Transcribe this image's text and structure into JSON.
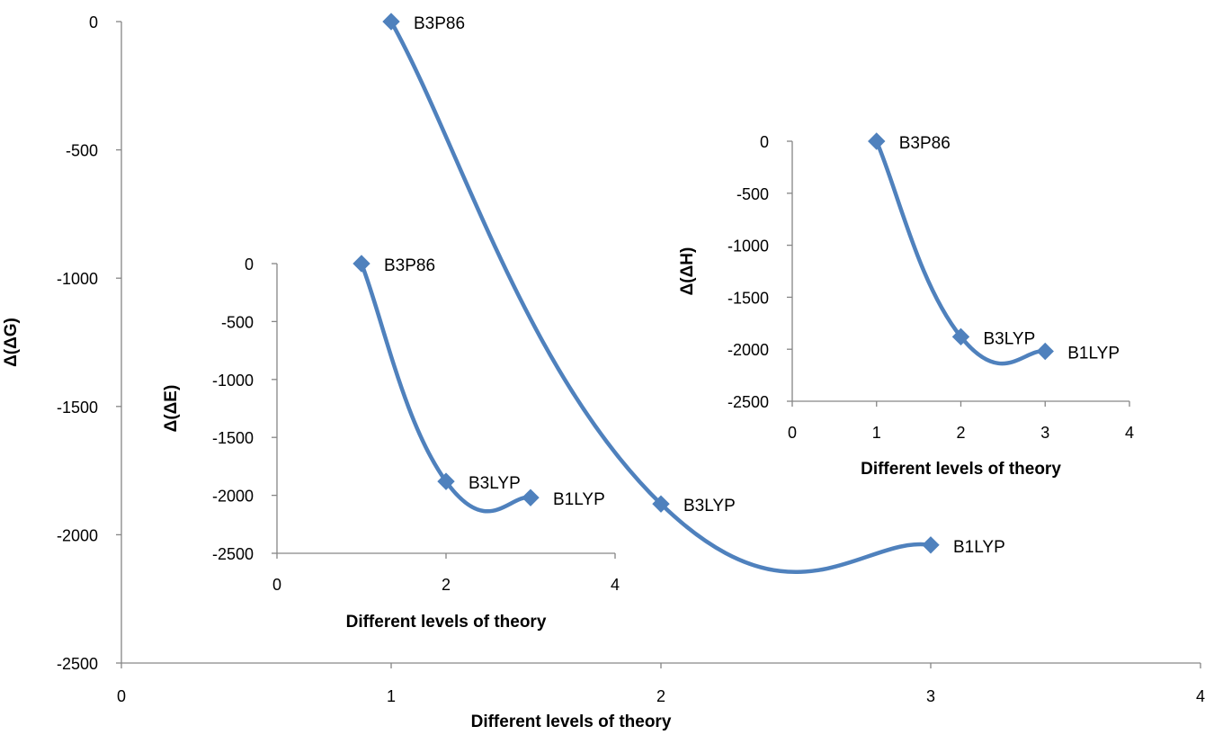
{
  "chart_data": [
    {
      "type": "line",
      "xlabel": "Different levels of theory",
      "ylabel": "Δ(ΔG)",
      "xlim": [
        0,
        4
      ],
      "ylim": [
        -2500,
        0
      ],
      "xticks": [
        0,
        1,
        2,
        3,
        4
      ],
      "yticks": [
        0,
        -500,
        -1000,
        -1500,
        -2000,
        -2500
      ],
      "smooth": true,
      "grid": false,
      "legend": "none",
      "color": "#4f81bd",
      "series": [
        {
          "x": [
            1,
            2,
            3
          ],
          "y": [
            0,
            -1880,
            -2040
          ],
          "point_labels": [
            "B3P86",
            "B3LYP",
            "B1LYP"
          ]
        }
      ]
    },
    {
      "type": "line",
      "xlabel": "Different levels of theory",
      "ylabel": "Δ(ΔE)",
      "xlim": [
        0,
        4
      ],
      "ylim": [
        -2500,
        0
      ],
      "xticks": [
        0,
        2,
        4
      ],
      "yticks": [
        0,
        -500,
        -1000,
        -1500,
        -2000,
        -2500
      ],
      "smooth": true,
      "grid": false,
      "legend": "none",
      "color": "#4f81bd",
      "series": [
        {
          "x": [
            1,
            2,
            3
          ],
          "y": [
            0,
            -1880,
            -2020
          ],
          "point_labels": [
            "B3P86",
            "B3LYP",
            "B1LYP"
          ]
        }
      ]
    },
    {
      "type": "line",
      "xlabel": "Different levels of theory",
      "ylabel": "Δ(ΔH)",
      "xlim": [
        0,
        4
      ],
      "ylim": [
        -2500,
        0
      ],
      "xticks": [
        0,
        1,
        2,
        3,
        4
      ],
      "yticks": [
        0,
        -500,
        -1000,
        -1500,
        -2000,
        -2500
      ],
      "smooth": true,
      "grid": false,
      "legend": "none",
      "color": "#4f81bd",
      "series": [
        {
          "x": [
            1,
            2,
            3
          ],
          "y": [
            0,
            -1880,
            -2020
          ],
          "point_labels": [
            "B3P86",
            "B3LYP",
            "B1LYP"
          ]
        }
      ]
    }
  ]
}
